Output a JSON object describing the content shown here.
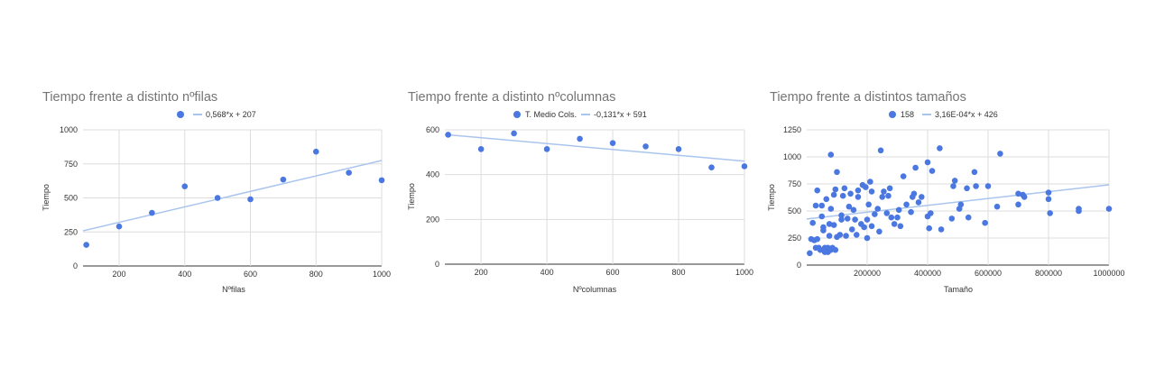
{
  "colors": {
    "point": "#4a77e0",
    "trend": "#a9c5ee",
    "title": "#757575",
    "text": "#333333",
    "grid": "#dddddd"
  },
  "chart_data": [
    {
      "type": "scatter",
      "title": "Tiempo frente a distinto nºfilas",
      "xlabel": "Nºfilas",
      "ylabel": "Tiempo",
      "xlim": [
        90,
        1000
      ],
      "ylim": [
        0,
        1000
      ],
      "xticks": [
        200,
        400,
        600,
        800,
        1000
      ],
      "yticks": [
        0,
        250,
        500,
        750,
        1000
      ],
      "grid": true,
      "legend_position": "top",
      "series": [
        {
          "name": "",
          "points": [
            [
              100,
              155
            ],
            [
              200,
              290
            ],
            [
              300,
              390
            ],
            [
              400,
              585
            ],
            [
              500,
              500
            ],
            [
              600,
              490
            ],
            [
              700,
              635
            ],
            [
              800,
              840
            ],
            [
              900,
              685
            ],
            [
              1000,
              630
            ]
          ]
        }
      ],
      "trendline": {
        "label": "0,568*x + 207",
        "slope": 0.568,
        "intercept": 207
      }
    },
    {
      "type": "scatter",
      "title": "Tiempo frente a distinto nºcolumnas",
      "xlabel": "Nºcolumnas",
      "ylabel": "Tiempo",
      "xlim": [
        90,
        1000
      ],
      "ylim": [
        0,
        600
      ],
      "xticks": [
        200,
        400,
        600,
        800,
        1000
      ],
      "yticks": [
        0,
        200,
        400,
        600
      ],
      "grid": true,
      "legend_position": "top",
      "series": [
        {
          "name": "T. Medio Cols.",
          "points": [
            [
              100,
              578
            ],
            [
              200,
              514
            ],
            [
              300,
              584
            ],
            [
              400,
              514
            ],
            [
              500,
              560
            ],
            [
              600,
              541
            ],
            [
              700,
              526
            ],
            [
              800,
              514
            ],
            [
              900,
              432
            ],
            [
              1000,
              437
            ]
          ]
        }
      ],
      "trendline": {
        "label": "-0,131*x + 591",
        "slope": -0.131,
        "intercept": 591
      }
    },
    {
      "type": "scatter",
      "title": "Tiempo frente a distintos tamaños",
      "xlabel": "Tamaño",
      "ylabel": "Tiempo",
      "xlim": [
        0,
        1000000
      ],
      "ylim": [
        0,
        1250
      ],
      "xticks": [
        200000,
        400000,
        600000,
        800000,
        1000000
      ],
      "yticks": [
        0,
        250,
        500,
        750,
        1000,
        1250
      ],
      "grid": true,
      "legend_position": "top",
      "series": [
        {
          "name": "158",
          "points": [
            [
              10000,
              110
            ],
            [
              15000,
              240
            ],
            [
              20000,
              390
            ],
            [
              25000,
              230
            ],
            [
              30000,
              160
            ],
            [
              30000,
              550
            ],
            [
              35000,
              240
            ],
            [
              35000,
              690
            ],
            [
              40000,
              160
            ],
            [
              45000,
              140
            ],
            [
              50000,
              550
            ],
            [
              50000,
              450
            ],
            [
              55000,
              350
            ],
            [
              55000,
              320
            ],
            [
              60000,
              160
            ],
            [
              60000,
              120
            ],
            [
              65000,
              610
            ],
            [
              70000,
              120
            ],
            [
              70000,
              160
            ],
            [
              75000,
              270
            ],
            [
              75000,
              380
            ],
            [
              80000,
              1020
            ],
            [
              80000,
              140
            ],
            [
              80000,
              520
            ],
            [
              85000,
              160
            ],
            [
              90000,
              650
            ],
            [
              90000,
              370
            ],
            [
              95000,
              140
            ],
            [
              95000,
              700
            ],
            [
              100000,
              860
            ],
            [
              100000,
              260
            ],
            [
              110000,
              280
            ],
            [
              115000,
              420
            ],
            [
              115000,
              460
            ],
            [
              120000,
              640
            ],
            [
              125000,
              710
            ],
            [
              130000,
              270
            ],
            [
              135000,
              430
            ],
            [
              140000,
              540
            ],
            [
              145000,
              660
            ],
            [
              150000,
              330
            ],
            [
              155000,
              510
            ],
            [
              160000,
              420
            ],
            [
              165000,
              280
            ],
            [
              170000,
              690
            ],
            [
              170000,
              630
            ],
            [
              180000,
              380
            ],
            [
              185000,
              740
            ],
            [
              190000,
              350
            ],
            [
              195000,
              720
            ],
            [
              200000,
              250
            ],
            [
              200000,
              420
            ],
            [
              205000,
              560
            ],
            [
              210000,
              770
            ],
            [
              215000,
              680
            ],
            [
              215000,
              360
            ],
            [
              225000,
              470
            ],
            [
              235000,
              520
            ],
            [
              240000,
              310
            ],
            [
              245000,
              1060
            ],
            [
              250000,
              630
            ],
            [
              255000,
              680
            ],
            [
              265000,
              480
            ],
            [
              270000,
              640
            ],
            [
              275000,
              710
            ],
            [
              280000,
              440
            ],
            [
              290000,
              380
            ],
            [
              300000,
              440
            ],
            [
              305000,
              510
            ],
            [
              310000,
              360
            ],
            [
              320000,
              820
            ],
            [
              330000,
              560
            ],
            [
              345000,
              490
            ],
            [
              350000,
              630
            ],
            [
              355000,
              660
            ],
            [
              360000,
              900
            ],
            [
              370000,
              580
            ],
            [
              380000,
              630
            ],
            [
              400000,
              950
            ],
            [
              400000,
              450
            ],
            [
              405000,
              340
            ],
            [
              410000,
              480
            ],
            [
              415000,
              870
            ],
            [
              440000,
              1080
            ],
            [
              445000,
              330
            ],
            [
              480000,
              430
            ],
            [
              485000,
              730
            ],
            [
              490000,
              780
            ],
            [
              505000,
              520
            ],
            [
              510000,
              560
            ],
            [
              530000,
              710
            ],
            [
              535000,
              440
            ],
            [
              555000,
              860
            ],
            [
              560000,
              730
            ],
            [
              590000,
              390
            ],
            [
              600000,
              730
            ],
            [
              630000,
              540
            ],
            [
              640000,
              1030
            ],
            [
              700000,
              560
            ],
            [
              700000,
              660
            ],
            [
              715000,
              650
            ],
            [
              720000,
              630
            ],
            [
              800000,
              670
            ],
            [
              800000,
              610
            ],
            [
              805000,
              480
            ],
            [
              900000,
              500
            ],
            [
              900000,
              520
            ],
            [
              1000000,
              520
            ]
          ]
        }
      ],
      "trendline": {
        "label": "3,16E-04*x + 426",
        "slope": 0.000316,
        "intercept": 426
      }
    }
  ]
}
